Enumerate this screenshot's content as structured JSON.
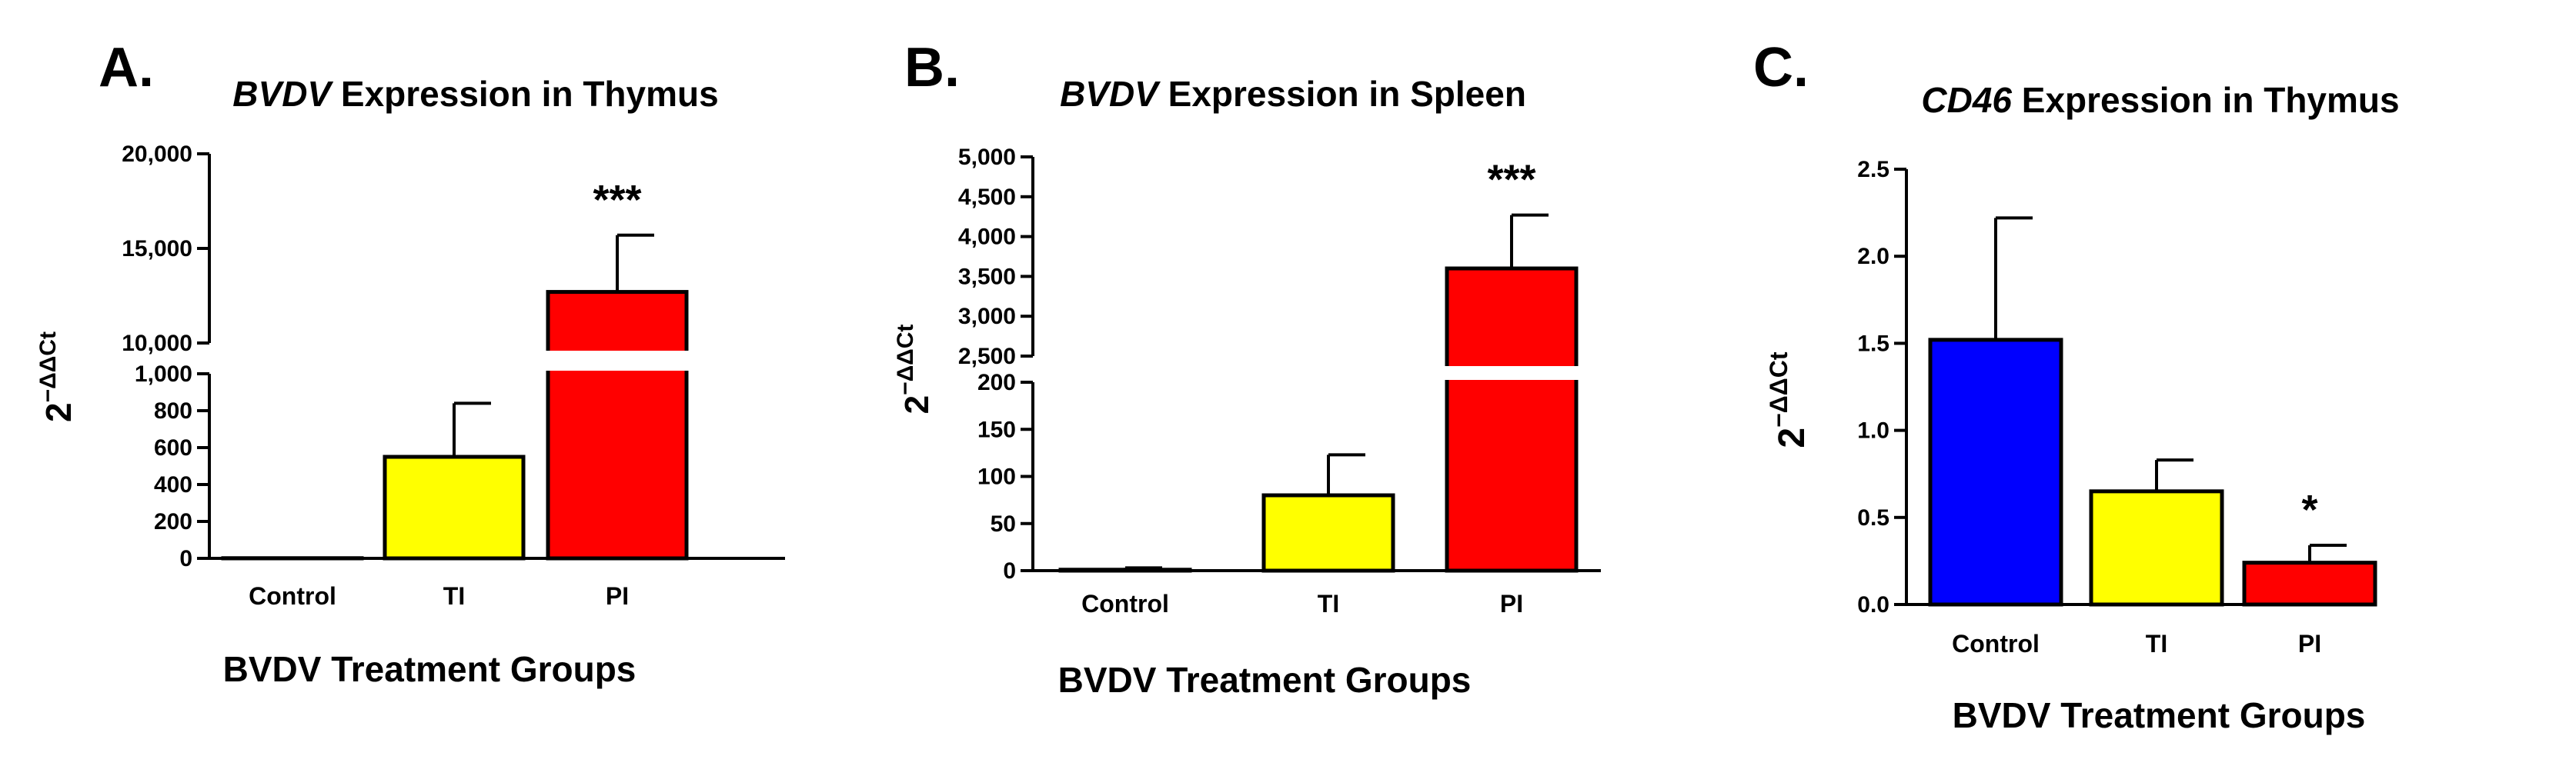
{
  "chart_data": [
    {
      "panel": "A.",
      "type": "bar",
      "title_italic": "BVDV",
      "title_rest": " Expression in Thymus",
      "xlabel": "BVDV Treatment Groups",
      "ylabel": "2−ΔΔCt",
      "ylabel_base": "2",
      "ylabel_exp": "−ΔΔCt",
      "categories": [
        "Control",
        "TI",
        "PI"
      ],
      "values": [
        1,
        550,
        12700
      ],
      "error_upper": [
        1,
        840,
        15700
      ],
      "colors": [
        "#0000ff",
        "#ffff00",
        "#ff0000"
      ],
      "significance": [
        "",
        "",
        "***"
      ],
      "broken_axis": true,
      "lower_segment": {
        "ylim": [
          0,
          1000
        ],
        "ticks": [
          0,
          200,
          400,
          600,
          800,
          1000
        ],
        "tick_labels": [
          "0",
          "200",
          "400",
          "600",
          "800",
          "1,000"
        ]
      },
      "upper_segment": {
        "ylim": [
          10000,
          20000
        ],
        "ticks": [
          10000,
          15000,
          20000
        ],
        "tick_labels": [
          "10,000",
          "15,000",
          "20,000"
        ]
      }
    },
    {
      "panel": "B.",
      "type": "bar",
      "title_italic": "BVDV",
      "title_rest": " Expression in Spleen",
      "xlabel": "BVDV Treatment Groups",
      "ylabel": "2−ΔΔCt",
      "ylabel_base": "2",
      "ylabel_exp": "−ΔΔCt",
      "categories": [
        "Control",
        "TI",
        "PI"
      ],
      "values": [
        1,
        80,
        3600
      ],
      "error_upper": [
        3,
        123,
        4270
      ],
      "colors": [
        "#0000ff",
        "#ffff00",
        "#ff0000"
      ],
      "significance": [
        "",
        "",
        "***"
      ],
      "broken_axis": true,
      "lower_segment": {
        "ylim": [
          0,
          200
        ],
        "ticks": [
          0,
          50,
          100,
          150,
          200
        ],
        "tick_labels": [
          "0",
          "50",
          "100",
          "150",
          "200"
        ]
      },
      "upper_segment": {
        "ylim": [
          2500,
          5000
        ],
        "ticks": [
          2500,
          3000,
          3500,
          4000,
          4500,
          5000
        ],
        "tick_labels": [
          "2,500",
          "3,000",
          "3,500",
          "4,000",
          "4,500",
          "5,000"
        ]
      }
    },
    {
      "panel": "C.",
      "type": "bar",
      "title_italic": "CD46",
      "title_rest": " Expression in Thymus",
      "xlabel": "BVDV Treatment Groups",
      "ylabel": "2−ΔΔCt",
      "ylabel_base": "2",
      "ylabel_exp": "−ΔΔCt",
      "categories": [
        "Control",
        "TI",
        "PI"
      ],
      "values": [
        1.52,
        0.65,
        0.24
      ],
      "error_upper": [
        2.22,
        0.83,
        0.34
      ],
      "colors": [
        "#0000ff",
        "#ffff00",
        "#ff0000"
      ],
      "significance": [
        "",
        "",
        "*"
      ],
      "broken_axis": false,
      "ylim": [
        0,
        2.5
      ],
      "ticks": [
        0,
        0.5,
        1.0,
        1.5,
        2.0,
        2.5
      ],
      "tick_labels": [
        "0.0",
        "0.5",
        "1.0",
        "1.5",
        "2.0",
        "2.5"
      ]
    }
  ]
}
